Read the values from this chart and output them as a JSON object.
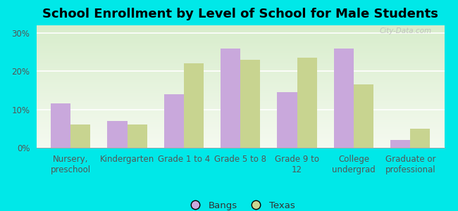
{
  "title": "School Enrollment by Level of School for Male Students",
  "categories": [
    "Nursery,\npreschool",
    "Kindergarten",
    "Grade 1 to 4",
    "Grade 5 to 8",
    "Grade 9 to\n12",
    "College\nundergrad",
    "Graduate or\nprofessional"
  ],
  "bangs_values": [
    11.5,
    7.0,
    14.0,
    26.0,
    14.5,
    26.0,
    2.0
  ],
  "texas_values": [
    6.0,
    6.0,
    22.0,
    23.0,
    23.5,
    16.5,
    5.0
  ],
  "bangs_color": "#c9a8dc",
  "texas_color": "#c8d490",
  "background_color": "#00e8e8",
  "yticks": [
    0,
    10,
    20,
    30
  ],
  "ylim": [
    0,
    32
  ],
  "legend_labels": [
    "Bangs",
    "Texas"
  ],
  "bar_width": 0.35,
  "title_fontsize": 13,
  "axis_fontsize": 8.5,
  "legend_fontsize": 9.5,
  "watermark": "City-Data.com",
  "grad_top": "#d8edcc",
  "grad_bottom": "#f5faf0"
}
